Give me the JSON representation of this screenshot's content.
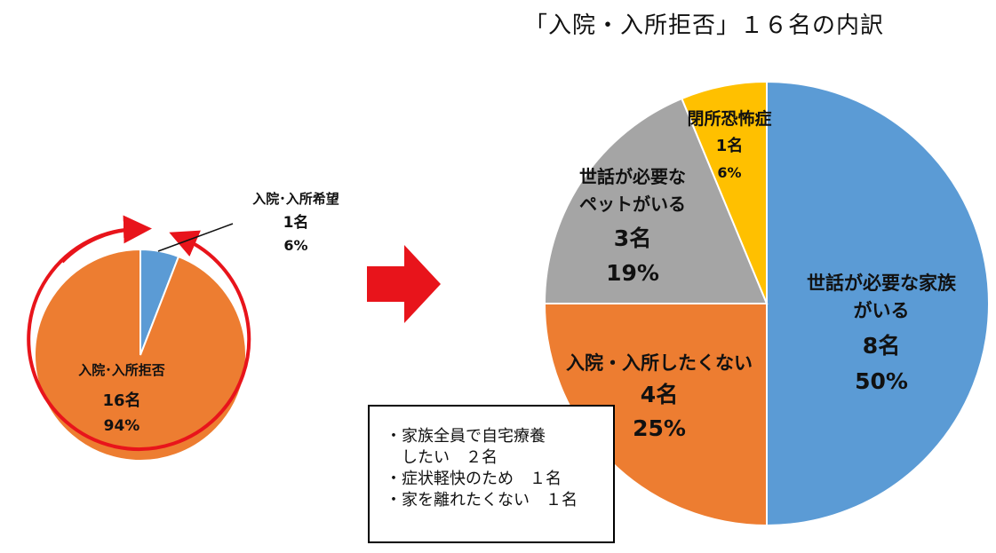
{
  "title": "「入院・入所拒否」１６名の内訳",
  "colors": {
    "blue": "#5B9BD5",
    "orange": "#ED7D31",
    "gray": "#A5A5A5",
    "gold": "#FFC000",
    "red": "#E8141B"
  },
  "chart_data": [
    {
      "type": "pie",
      "slices": [
        {
          "label": "入院･入所希望",
          "count": "1名",
          "percent": "6%",
          "value": 1,
          "color": "#5B9BD5"
        },
        {
          "label": "入院･入所拒否",
          "count": "16名",
          "percent": "94%",
          "value": 16,
          "color": "#ED7D31"
        }
      ]
    },
    {
      "type": "pie",
      "title": "「入院・入所拒否」１６名の内訳",
      "slices": [
        {
          "label_lines": [
            "世話が必要な家族",
            "がいる"
          ],
          "count": "8名",
          "percent": "50%",
          "value": 8,
          "color": "#5B9BD5"
        },
        {
          "label_lines": [
            "入院・入所したくない"
          ],
          "count": "4名",
          "percent": "25%",
          "value": 4,
          "color": "#ED7D31"
        },
        {
          "label_lines": [
            "世話が必要な",
            "ペットがいる"
          ],
          "count": "3名",
          "percent": "19%",
          "value": 3,
          "color": "#A5A5A5"
        },
        {
          "label_lines": [
            "閉所恐怖症"
          ],
          "count": "1名",
          "percent": "6%",
          "value": 1,
          "color": "#FFC000"
        }
      ]
    }
  ],
  "note": {
    "lines": [
      "・家族全員で自宅療養",
      "　したい　２名",
      "・症状軽快のため　１名",
      "・家を離れたくない　１名"
    ]
  }
}
